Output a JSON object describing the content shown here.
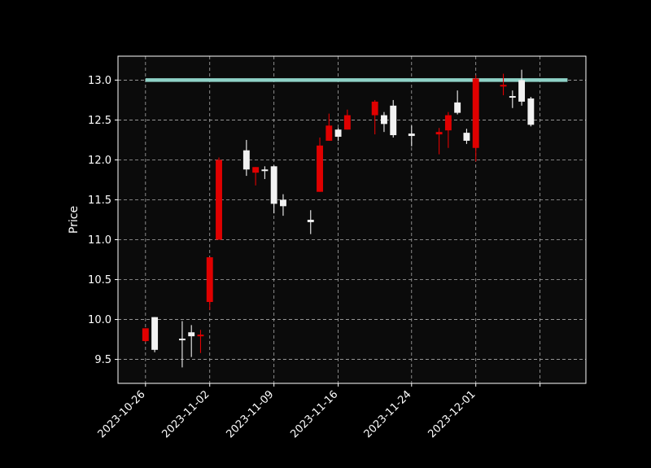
{
  "chart_data": {
    "type": "candlestick",
    "title": "",
    "xlabel": "",
    "ylabel": "Price",
    "ylim": [
      9.2,
      13.3
    ],
    "grid": true,
    "y_ticks": [
      9.5,
      10.0,
      10.5,
      11.0,
      11.5,
      12.0,
      12.5,
      13.0
    ],
    "y_tick_labels": [
      "9.5",
      "10.0",
      "10.5",
      "11.0",
      "11.5",
      "12.0",
      "12.5",
      "13.0"
    ],
    "x_ticks": [
      "2023-10-26",
      "2023-11-02",
      "2023-11-09",
      "2023-11-16",
      "2023-11-24",
      "2023-12-01"
    ],
    "x_range": [
      "2023-10-23",
      "2023-12-13"
    ],
    "colors": {
      "up": "#f2f2f2",
      "down": "#e00000",
      "hline": "#8fd3c8",
      "background": "#000000",
      "plot_bg": "#0b0b0b",
      "grid": "#aaaaaa",
      "axis": "#ffffff"
    },
    "horizontal_line": {
      "value": 13.0,
      "start": "2023-10-26",
      "end": "2023-12-11"
    },
    "candles": [
      {
        "date": "2023-10-26",
        "open": 9.89,
        "high": 9.89,
        "low": 9.72,
        "close": 9.73
      },
      {
        "date": "2023-10-27",
        "open": 9.62,
        "high": 10.03,
        "low": 9.59,
        "close": 10.03
      },
      {
        "date": "2023-10-30",
        "open": 9.75,
        "high": 9.98,
        "low": 9.4,
        "close": 9.76
      },
      {
        "date": "2023-10-31",
        "open": 9.79,
        "high": 9.93,
        "low": 9.53,
        "close": 9.84
      },
      {
        "date": "2023-11-01",
        "open": 9.81,
        "high": 9.87,
        "low": 9.58,
        "close": 9.8
      },
      {
        "date": "2023-11-02",
        "open": 10.78,
        "high": 10.78,
        "low": 10.12,
        "close": 10.22
      },
      {
        "date": "2023-11-03",
        "open": 12.0,
        "high": 12.03,
        "low": 11.0,
        "close": 11.0
      },
      {
        "date": "2023-11-06",
        "open": 11.88,
        "high": 12.25,
        "low": 11.8,
        "close": 12.12
      },
      {
        "date": "2023-11-07",
        "open": 11.91,
        "high": 11.91,
        "low": 11.68,
        "close": 11.84
      },
      {
        "date": "2023-11-08",
        "open": 11.86,
        "high": 11.92,
        "low": 11.76,
        "close": 11.88
      },
      {
        "date": "2023-11-09",
        "open": 11.45,
        "high": 11.93,
        "low": 11.33,
        "close": 11.92
      },
      {
        "date": "2023-11-10",
        "open": 11.42,
        "high": 11.57,
        "low": 11.3,
        "close": 11.5
      },
      {
        "date": "2023-11-13",
        "open": 11.22,
        "high": 11.37,
        "low": 11.07,
        "close": 11.25
      },
      {
        "date": "2023-11-14",
        "open": 12.18,
        "high": 12.28,
        "low": 11.6,
        "close": 11.6
      },
      {
        "date": "2023-11-15",
        "open": 12.43,
        "high": 12.58,
        "low": 12.24,
        "close": 12.24
      },
      {
        "date": "2023-11-16",
        "open": 12.29,
        "high": 12.4,
        "low": 12.24,
        "close": 12.38
      },
      {
        "date": "2023-11-17",
        "open": 12.56,
        "high": 12.63,
        "low": 12.38,
        "close": 12.38
      },
      {
        "date": "2023-11-20",
        "open": 12.73,
        "high": 12.75,
        "low": 12.32,
        "close": 12.56
      },
      {
        "date": "2023-11-21",
        "open": 12.45,
        "high": 12.6,
        "low": 12.35,
        "close": 12.56
      },
      {
        "date": "2023-11-22",
        "open": 12.31,
        "high": 12.75,
        "low": 12.28,
        "close": 12.68
      },
      {
        "date": "2023-11-24",
        "open": 12.3,
        "high": 12.43,
        "low": 12.17,
        "close": 12.33
      },
      {
        "date": "2023-11-27",
        "open": 12.35,
        "high": 12.4,
        "low": 12.07,
        "close": 12.32
      },
      {
        "date": "2023-11-28",
        "open": 12.56,
        "high": 12.6,
        "low": 12.15,
        "close": 12.37
      },
      {
        "date": "2023-11-29",
        "open": 12.59,
        "high": 12.87,
        "low": 12.57,
        "close": 12.72
      },
      {
        "date": "2023-11-30",
        "open": 12.24,
        "high": 12.39,
        "low": 12.2,
        "close": 12.34
      },
      {
        "date": "2023-12-01",
        "open": 13.02,
        "high": 13.06,
        "low": 11.98,
        "close": 12.15
      },
      {
        "date": "2023-12-04",
        "open": 12.94,
        "high": 13.08,
        "low": 12.81,
        "close": 12.92
      },
      {
        "date": "2023-12-05",
        "open": 12.78,
        "high": 12.87,
        "low": 12.65,
        "close": 12.8
      },
      {
        "date": "2023-12-06",
        "open": 12.73,
        "high": 13.13,
        "low": 12.68,
        "close": 13.0
      },
      {
        "date": "2023-12-07",
        "open": 12.44,
        "high": 12.79,
        "low": 12.42,
        "close": 12.77
      }
    ]
  }
}
